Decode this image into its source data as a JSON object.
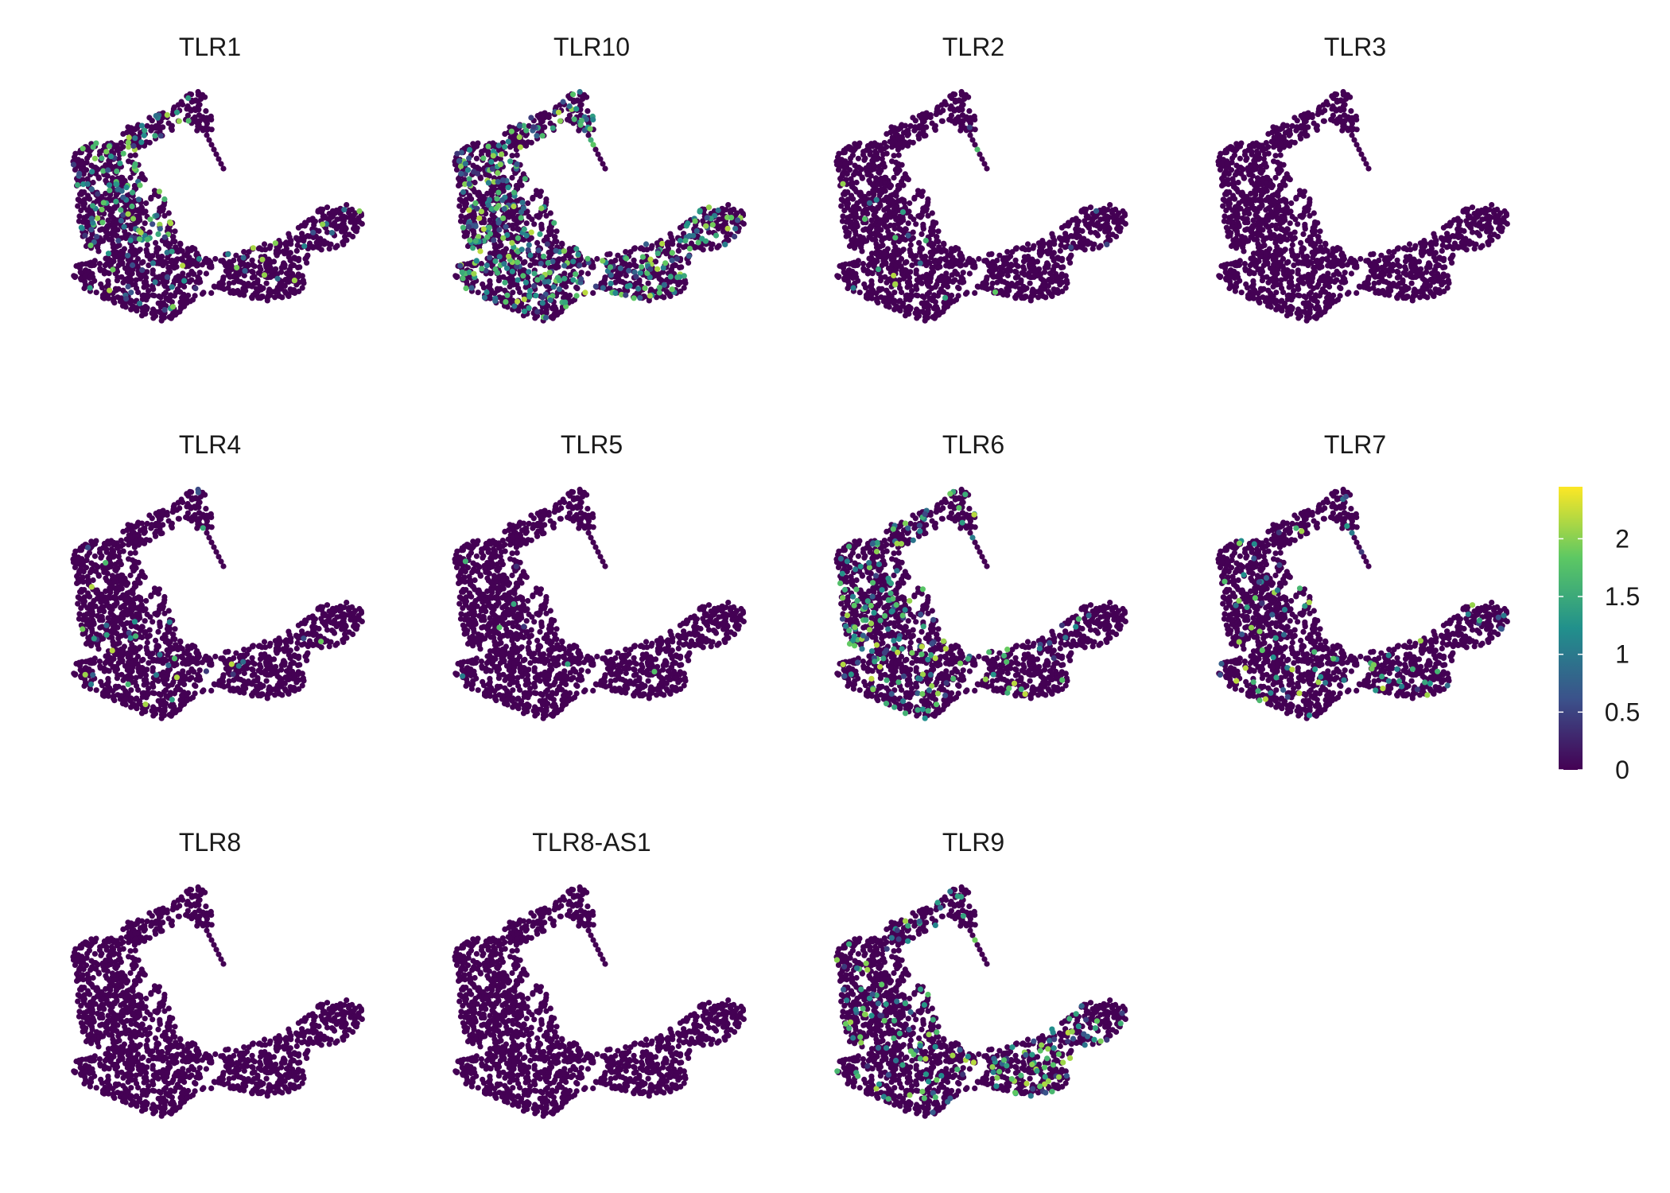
{
  "chart_data": {
    "type": "scatter",
    "layout": "faceted grid, 3 rows x 4 columns, 11 panels",
    "axes_visible": false,
    "grid": false,
    "legend_placement": "right",
    "colorbar": {
      "ticks": [
        "0",
        "0.5",
        "1",
        "1.5",
        "2"
      ],
      "range": [
        0,
        2.45
      ],
      "colors": [
        "#440154",
        "#3b528b",
        "#21908c",
        "#5dc863",
        "#fde725"
      ]
    },
    "panels": [
      {
        "title": "TLR1",
        "level": 0.35,
        "hotspot": "upper-left"
      },
      {
        "title": "TLR10",
        "level": 0.65,
        "hotspot": "everywhere"
      },
      {
        "title": "TLR2",
        "level": 0.05,
        "hotspot": "none"
      },
      {
        "title": "TLR3",
        "level": 0.0,
        "hotspot": "none"
      },
      {
        "title": "TLR4",
        "level": 0.06,
        "hotspot": "none"
      },
      {
        "title": "TLR5",
        "level": 0.02,
        "hotspot": "none"
      },
      {
        "title": "TLR6",
        "level": 0.3,
        "hotspot": "left"
      },
      {
        "title": "TLR7",
        "level": 0.2,
        "hotspot": "right"
      },
      {
        "title": "TLR8",
        "level": 0.0,
        "hotspot": "none"
      },
      {
        "title": "TLR8-AS1",
        "level": 0.0,
        "hotspot": "none"
      },
      {
        "title": "TLR9",
        "level": 0.35,
        "hotspot": "right"
      }
    ]
  }
}
